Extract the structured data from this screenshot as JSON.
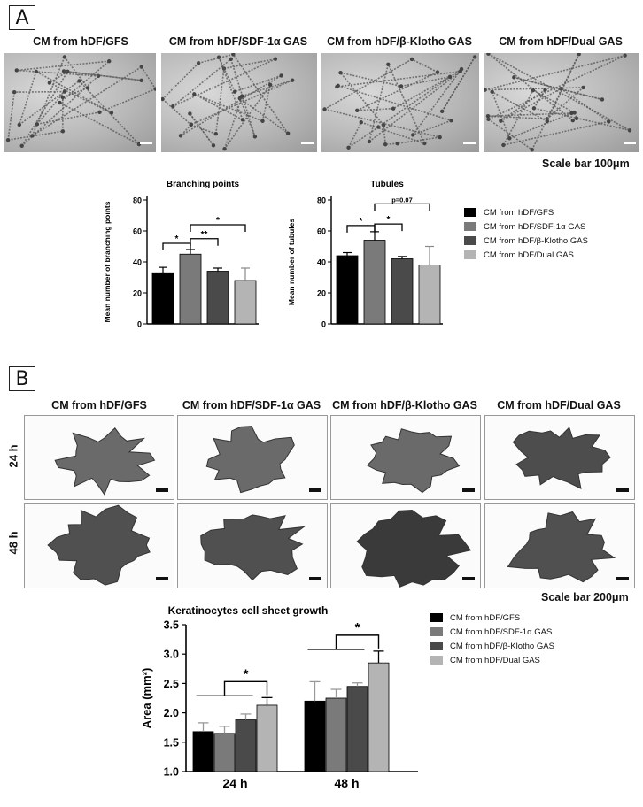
{
  "panelA": {
    "label": "A",
    "images": [
      {
        "title": "CM from hDF/GFS"
      },
      {
        "title": "CM from hDF/SDF-1α GAS"
      },
      {
        "title": "CM from hDF/β-Klotho GAS"
      },
      {
        "title": "CM from hDF/Dual GAS"
      }
    ],
    "scale_bar": "Scale bar 100μm",
    "legend": [
      "CM from hDF/GFS",
      "CM from hDF/SDF-1α GAS",
      "CM from hDF/β-Klotho GAS",
      "CM from hDF/Dual GAS"
    ]
  },
  "panelB": {
    "label": "B",
    "images": [
      {
        "title": "CM from hDF/GFS"
      },
      {
        "title": "CM from hDF/SDF-1α GAS"
      },
      {
        "title": "CM from hDF/β-Klotho GAS"
      },
      {
        "title": "CM from hDF/Dual GAS"
      }
    ],
    "rows": [
      "24 h",
      "48 h"
    ],
    "scale_bar": "Scale bar 200μm",
    "legend": [
      "CM from hDF/GFS",
      "CM from hDF/SDF-1α GAS",
      "CM from hDF/β-Klotho GAS",
      "CM from hDF/Dual GAS"
    ]
  },
  "colors": {
    "gfs": "#000000",
    "sdf": "#7a7a7a",
    "klotho": "#4a4a4a",
    "dual": "#b4b4b4"
  },
  "chart_data": [
    {
      "type": "bar",
      "title": "Branching points",
      "ylabel": "Mean number of branching points",
      "ylim": [
        0,
        80
      ],
      "yticks": [
        0,
        20,
        40,
        60,
        80
      ],
      "categories": [
        "CM from hDF/GFS",
        "CM from hDF/SDF-1α GAS",
        "CM from hDF/β-Klotho GAS",
        "CM from hDF/Dual GAS"
      ],
      "values": [
        33,
        45,
        34,
        28
      ],
      "errors": [
        3.5,
        3,
        2,
        8
      ],
      "annotations": [
        {
          "between": [
            0,
            1
          ],
          "text": "*"
        },
        {
          "between": [
            1,
            2
          ],
          "text": "**"
        },
        {
          "between": [
            1,
            3
          ],
          "text": "*"
        }
      ]
    },
    {
      "type": "bar",
      "title": "Tubules",
      "ylabel": "Mean number of tubules",
      "ylim": [
        0,
        80
      ],
      "yticks": [
        0,
        20,
        40,
        60,
        80
      ],
      "categories": [
        "CM from hDF/GFS",
        "CM from hDF/SDF-1α GAS",
        "CM from hDF/β-Klotho GAS",
        "CM from hDF/Dual GAS"
      ],
      "values": [
        44,
        54,
        42,
        38
      ],
      "errors": [
        2,
        5.5,
        1.5,
        12
      ],
      "annotations": [
        {
          "between": [
            0,
            1
          ],
          "text": "*"
        },
        {
          "between": [
            1,
            2
          ],
          "text": "*"
        },
        {
          "between": [
            1,
            3
          ],
          "text": "p=0.07"
        }
      ]
    },
    {
      "type": "bar",
      "title": "Keratinocytes cell sheet growth",
      "ylabel": "Area (mm²)",
      "ylim": [
        1.0,
        3.5
      ],
      "yticks": [
        "1.0",
        "1.5",
        "2.0",
        "2.5",
        "3.0",
        "3.5"
      ],
      "categories": [
        "24 h",
        "48 h"
      ],
      "series": [
        {
          "name": "CM from hDF/GFS",
          "values": [
            1.68,
            2.2
          ],
          "errors": [
            0.15,
            0.33
          ]
        },
        {
          "name": "CM from hDF/SDF-1α GAS",
          "values": [
            1.65,
            2.25
          ],
          "errors": [
            0.12,
            0.15
          ]
        },
        {
          "name": "CM from hDF/β-Klotho GAS",
          "values": [
            1.88,
            2.45
          ],
          "errors": [
            0.1,
            0.06
          ]
        },
        {
          "name": "CM from hDF/Dual GAS",
          "values": [
            2.13,
            2.85
          ],
          "errors": [
            0.13,
            0.2
          ]
        }
      ],
      "annotations": [
        {
          "category": "24 h",
          "text": "*"
        },
        {
          "category": "48 h",
          "text": "*"
        }
      ]
    }
  ]
}
